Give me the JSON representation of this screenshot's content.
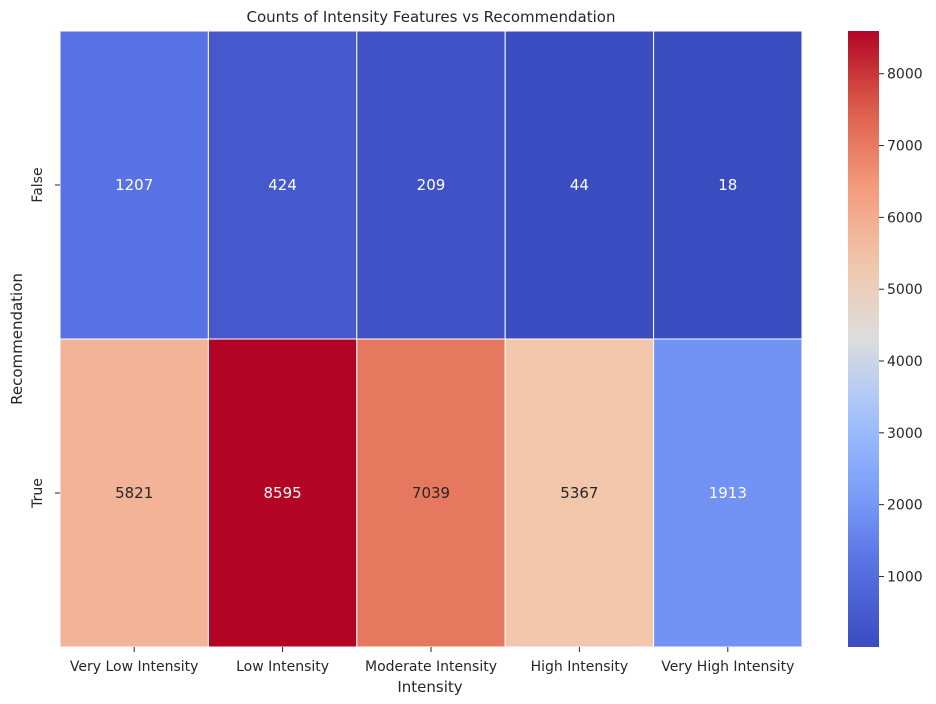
{
  "chart_data": {
    "type": "heatmap",
    "title": "Counts of Intensity Features vs Recommendation",
    "xlabel": "Intensity",
    "ylabel": "Recommendation",
    "x_categories": [
      "Very Low Intensity",
      "Low Intensity",
      "Moderate Intensity",
      "High Intensity",
      "Very High Intensity"
    ],
    "y_categories": [
      "False",
      "True"
    ],
    "values": [
      [
        1207,
        424,
        209,
        44,
        18
      ],
      [
        5821,
        8595,
        7039,
        5367,
        1913
      ]
    ],
    "colormap": "coolwarm",
    "vmin": 18,
    "vmax": 8595,
    "colorbar_ticks": [
      1000,
      2000,
      3000,
      4000,
      5000,
      6000,
      7000,
      8000
    ],
    "annotations": true,
    "grid_line_color": "#ffffff"
  }
}
